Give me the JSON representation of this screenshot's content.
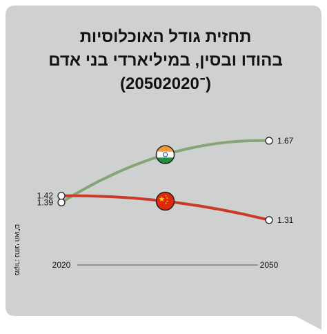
{
  "colors": {
    "card_background": "#cfd0d0",
    "india": "#86a577",
    "china": "#cc3b2a",
    "text": "#111111",
    "axis": "#555555",
    "marker_fill": "#ffffff"
  },
  "icons": {
    "india": "india-flag-icon",
    "china": "china-flag-icon"
  },
  "chart_data": {
    "type": "line",
    "title": "תחזית גודל האוכלוסיות\nבהודו ובסין, במיליארדי בני אדם\n(2050־2020)",
    "x": [
      2020,
      2050
    ],
    "x_tick_labels": [
      "2020",
      "2050"
    ],
    "ylim": [
      1.25,
      1.72
    ],
    "grid": false,
    "legend": "flag icons on the curves",
    "series": [
      {
        "key": "india",
        "values": [
          1.39,
          1.67
        ],
        "value_labels": [
          "1.39",
          "1.67"
        ],
        "icon": "india-flag-icon"
      },
      {
        "key": "china",
        "values": [
          1.42,
          1.31
        ],
        "value_labels": [
          "1.42",
          "1.31"
        ],
        "icon": "china-flag-icon"
      }
    ],
    "source": "מקור: נתוני האו\"ם"
  }
}
